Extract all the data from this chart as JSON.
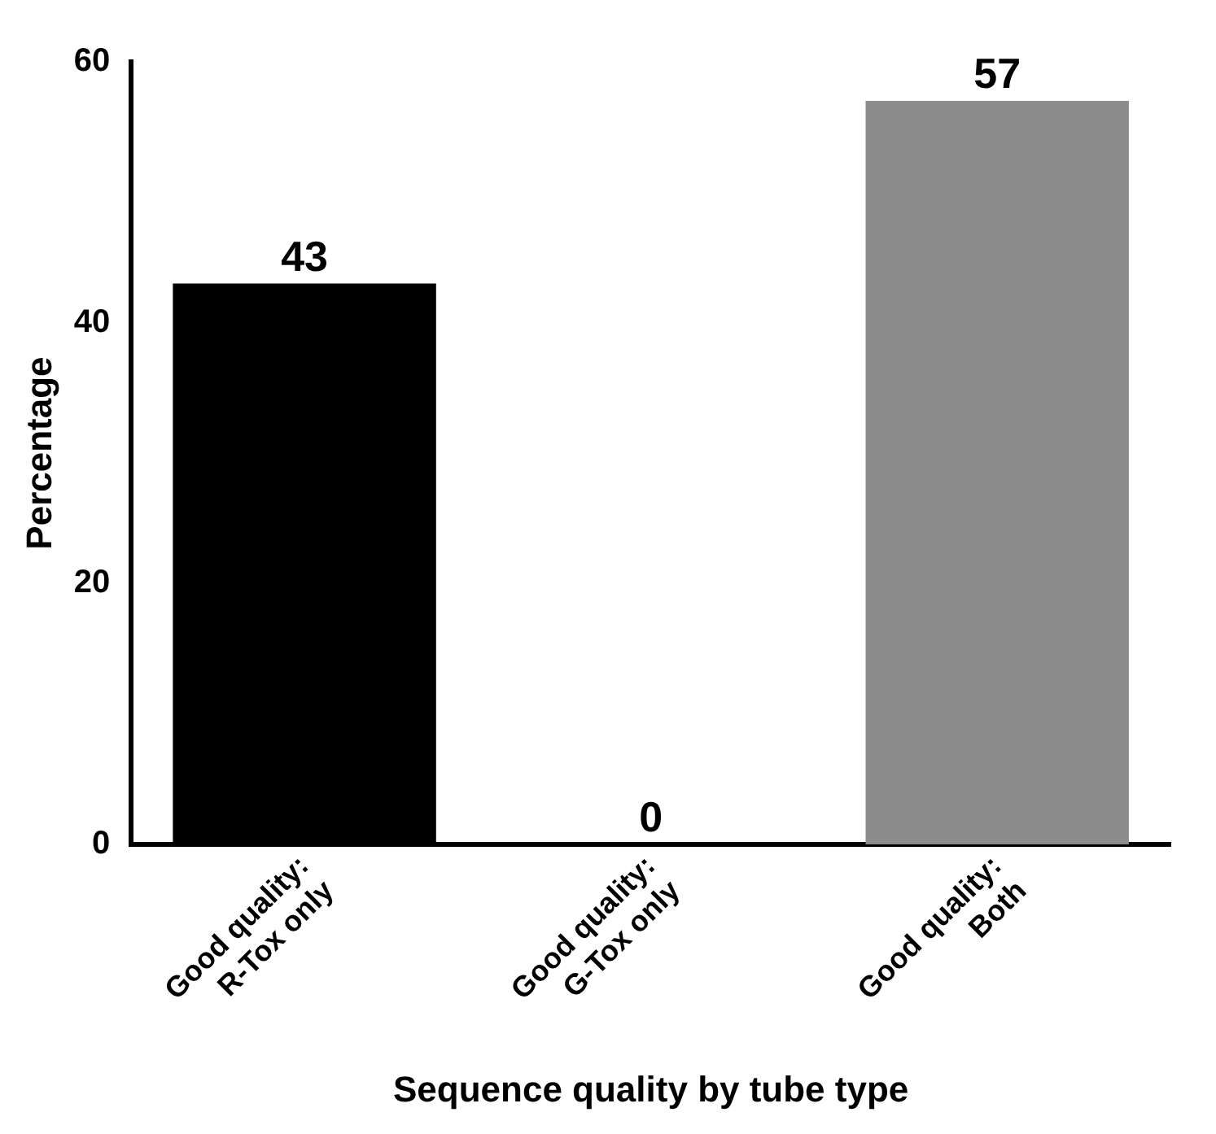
{
  "chart_data": {
    "type": "bar",
    "categories": [
      "Good quality:\nR-Tox only",
      "Good quality:\nG-Tox only",
      "Good quality:\nBoth"
    ],
    "values": [
      43,
      0,
      57
    ],
    "colors": [
      "#000000",
      "#000000",
      "#8c8c8c"
    ],
    "xlabel": "Sequence quality by tube type",
    "ylabel": "Percentage",
    "ylim": [
      0,
      60
    ],
    "yticks": [
      0,
      20,
      40,
      60
    ],
    "grid": false,
    "legend": false,
    "data_labels": true
  }
}
